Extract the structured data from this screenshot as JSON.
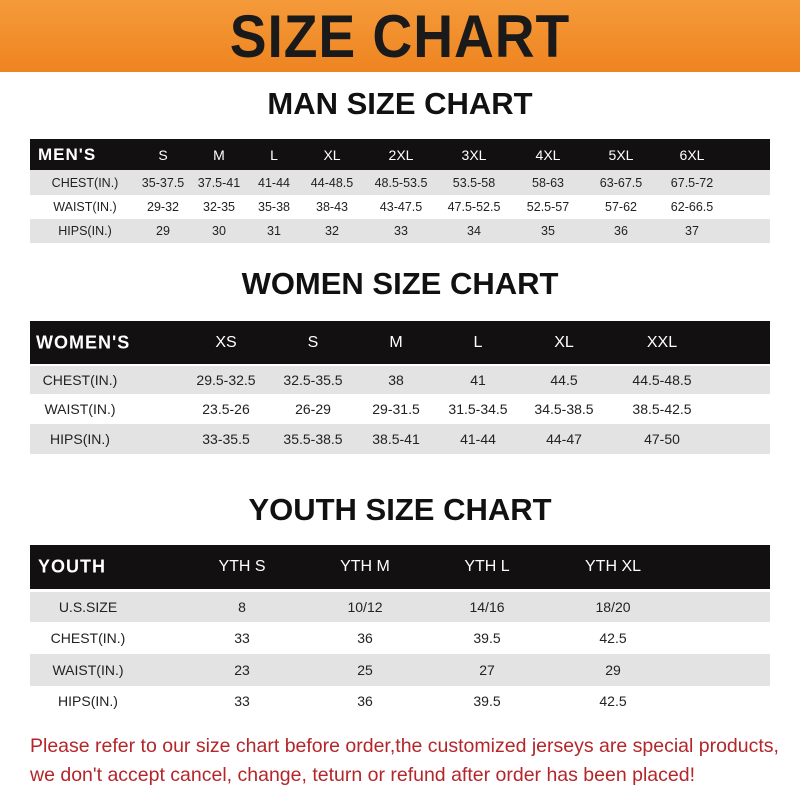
{
  "banner": {
    "title": "SIZE CHART",
    "color": "#f08a24"
  },
  "men": {
    "title": "MAN SIZE CHART",
    "header": [
      "MEN'S",
      "S",
      "M",
      "L",
      "XL",
      "2XL",
      "3XL",
      "4XL",
      "5XL",
      "6XL"
    ],
    "rows": [
      [
        "CHEST(IN.)",
        "35-37.5",
        "37.5-41",
        "41-44",
        "44-48.5",
        "48.5-53.5",
        "53.5-58",
        "58-63",
        "63-67.5",
        "67.5-72"
      ],
      [
        "WAIST(IN.)",
        "29-32",
        "32-35",
        "35-38",
        "38-43",
        "43-47.5",
        "47.5-52.5",
        "52.5-57",
        "57-62",
        "62-66.5"
      ],
      [
        "HIPS(IN.)",
        "29",
        "30",
        "31",
        "32",
        "33",
        "34",
        "35",
        "36",
        "37"
      ]
    ]
  },
  "women": {
    "title": "WOMEN SIZE CHART",
    "header": [
      "WOMEN'S",
      "XS",
      "S",
      "M",
      "L",
      "XL",
      "XXL"
    ],
    "rows": [
      [
        "CHEST(IN.)",
        "29.5-32.5",
        "32.5-35.5",
        "38",
        "41",
        "44.5",
        "44.5-48.5"
      ],
      [
        "WAIST(IN.)",
        "23.5-26",
        "26-29",
        "29-31.5",
        "31.5-34.5",
        "34.5-38.5",
        "38.5-42.5"
      ],
      [
        "HIPS(IN.)",
        "33-35.5",
        "35.5-38.5",
        "38.5-41",
        "41-44",
        "44-47",
        "47-50"
      ]
    ]
  },
  "youth": {
    "title": "YOUTH SIZE CHART",
    "header": [
      "YOUTH",
      "YTH S",
      "YTH M",
      "YTH L",
      "YTH XL"
    ],
    "rows": [
      [
        "U.S.SIZE",
        "8",
        "10/12",
        "14/16",
        "18/20"
      ],
      [
        "CHEST(IN.)",
        "33",
        "36",
        "39.5",
        "42.5"
      ],
      [
        "WAIST(IN.)",
        "23",
        "25",
        "27",
        "29"
      ],
      [
        "HIPS(IN.)",
        "33",
        "36",
        "39.5",
        "42.5"
      ]
    ]
  },
  "note": {
    "line1": "Please refer to our size chart before order,the customized jerseys are special products,",
    "line2": "we don't accept cancel, change, teturn or refund after order has been placed!",
    "color": "#b3262a"
  }
}
